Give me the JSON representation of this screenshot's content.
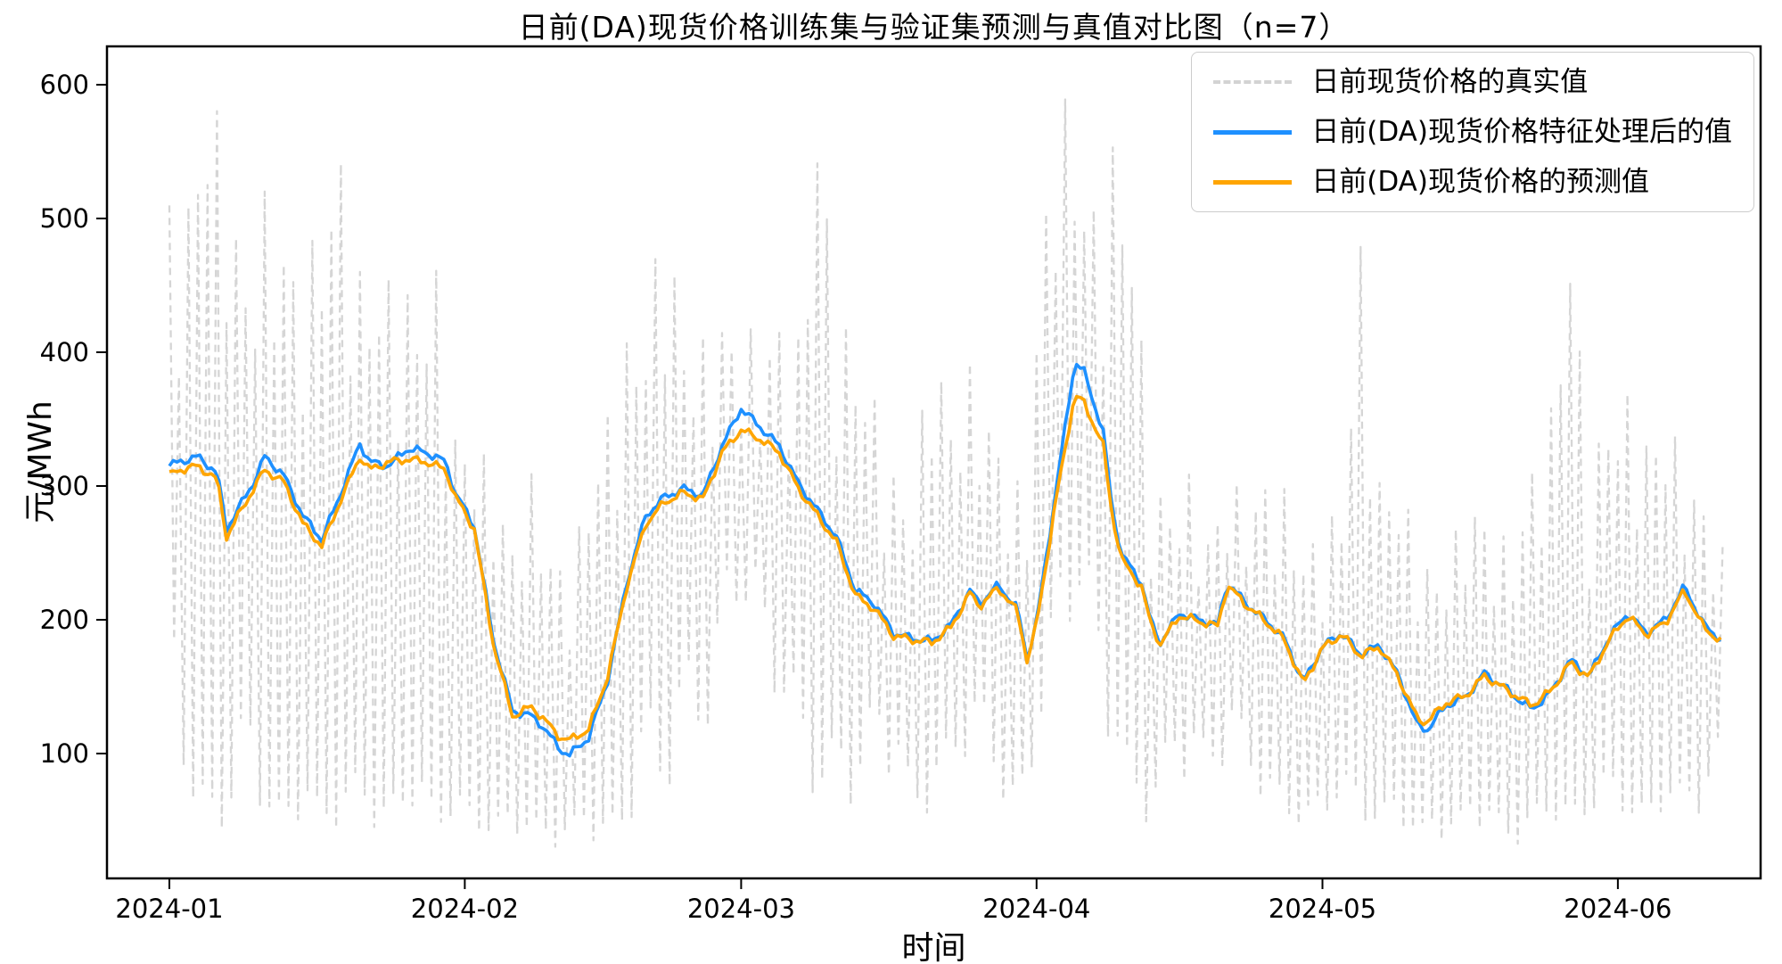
{
  "title": "日前(DA)现货价格训练集与验证集预测与真值对比图（n=7）",
  "xlabel": "时间",
  "ylabel": "元/MWh",
  "colors": {
    "actual": "#d3d3d3",
    "processed": "#1e90ff",
    "predicted": "#ffa500"
  },
  "legend": {
    "items": [
      {
        "label": "日前现货价格的真实值",
        "style": "dashed",
        "color": "#d3d3d3"
      },
      {
        "label": "日前(DA)现货价格特征处理后的值",
        "style": "solid",
        "color": "#1e90ff"
      },
      {
        "label": "日前(DA)现货价格的预测值",
        "style": "solid",
        "color": "#ffa500"
      }
    ]
  },
  "chart_data": {
    "type": "line",
    "title": "日前(DA)现货价格训练集与验证集预测与真值对比图（n=7）",
    "xlabel": "时间",
    "ylabel": "元/MWh",
    "grid": false,
    "legend_position": "upper right",
    "x_axis": {
      "ticks": [
        {
          "label": "2024-01",
          "day": 0
        },
        {
          "label": "2024-02",
          "day": 31
        },
        {
          "label": "2024-03",
          "day": 60
        },
        {
          "label": "2024-04",
          "day": 91
        },
        {
          "label": "2024-05",
          "day": 121
        },
        {
          "label": "2024-06",
          "day": 152
        }
      ]
    },
    "y_axis": {
      "ticks": [
        100,
        200,
        300,
        400,
        500,
        600
      ],
      "lim": [
        7,
        629
      ]
    },
    "dates": [
      "01-01",
      "01-02",
      "01-04",
      "01-06",
      "01-07",
      "01-08",
      "01-10",
      "01-11",
      "01-13",
      "01-15",
      "01-17",
      "01-19",
      "01-21",
      "01-22",
      "01-24",
      "01-26",
      "01-28",
      "01-30",
      "01-31",
      "02-02",
      "02-04",
      "02-06",
      "02-08",
      "02-09",
      "02-11",
      "02-12",
      "02-14",
      "02-16",
      "02-18",
      "02-20",
      "02-22",
      "02-24",
      "02-26",
      "02-28",
      "03-01",
      "03-03",
      "03-05",
      "03-07",
      "03-09",
      "03-11",
      "03-13",
      "03-15",
      "03-17",
      "03-19",
      "03-21",
      "03-23",
      "03-25",
      "03-26",
      "03-28",
      "03-30",
      "03-31",
      "04-01",
      "04-03",
      "04-05",
      "04-06",
      "04-08",
      "04-09",
      "04-10",
      "04-12",
      "04-13",
      "04-14",
      "04-16",
      "04-18",
      "04-20",
      "04-21",
      "04-23",
      "04-25",
      "04-27",
      "04-29",
      "05-01",
      "05-03",
      "05-05",
      "05-07",
      "05-09",
      "05-11",
      "05-12",
      "05-14",
      "05-16",
      "05-18",
      "05-20",
      "05-22",
      "05-23",
      "05-25",
      "05-27",
      "05-29",
      "05-31",
      "06-02",
      "06-04",
      "06-06",
      "06-08",
      "06-10",
      "06-12"
    ],
    "series": [
      {
        "name": "日前现货价格的真实值",
        "kind": "noisy-dashed",
        "color": "#d3d3d3",
        "envelope": {
          "dates": [
            "01-01",
            "01-03",
            "01-05",
            "01-07",
            "01-09",
            "01-11",
            "01-13",
            "01-15",
            "01-17",
            "01-19",
            "01-21",
            "01-23",
            "01-25",
            "01-27",
            "01-29",
            "01-31",
            "02-02",
            "02-04",
            "02-06",
            "02-08",
            "02-10",
            "02-12",
            "02-14",
            "02-16",
            "02-18",
            "02-20",
            "02-22",
            "02-24",
            "02-26",
            "02-28",
            "03-01",
            "03-03",
            "03-05",
            "03-07",
            "03-09",
            "03-11",
            "03-13",
            "03-15",
            "03-17",
            "03-19",
            "03-21",
            "03-23",
            "03-25",
            "03-27",
            "03-29",
            "03-31",
            "04-01",
            "04-03",
            "04-05",
            "04-07",
            "04-09",
            "04-11",
            "04-13",
            "04-15",
            "04-17",
            "04-19",
            "04-21",
            "04-23",
            "04-25",
            "04-27",
            "04-29",
            "05-01",
            "05-03",
            "05-05",
            "05-07",
            "05-09",
            "05-11",
            "05-13",
            "05-15",
            "05-17",
            "05-19",
            "05-21",
            "05-23",
            "05-25",
            "05-27",
            "05-29",
            "05-31",
            "06-02",
            "06-04",
            "06-06",
            "06-08",
            "06-10",
            "06-12"
          ],
          "low": [
            150,
            60,
            50,
            40,
            100,
            50,
            40,
            60,
            40,
            50,
            60,
            40,
            50,
            60,
            40,
            50,
            40,
            35,
            40,
            35,
            30,
            35,
            40,
            35,
            40,
            100,
            60,
            120,
            100,
            150,
            200,
            150,
            130,
            100,
            60,
            80,
            60,
            100,
            90,
            50,
            60,
            80,
            100,
            90,
            50,
            60,
            100,
            150,
            200,
            150,
            100,
            60,
            50,
            80,
            90,
            70,
            100,
            80,
            60,
            50,
            40,
            50,
            60,
            50,
            40,
            50,
            30,
            40,
            35,
            50,
            40,
            30,
            40,
            50,
            40,
            50,
            60,
            50,
            40,
            60,
            50,
            60,
            80
          ],
          "high": [
            500,
            505,
            600,
            530,
            450,
            505,
            480,
            440,
            500,
            540,
            450,
            450,
            445,
            430,
            450,
            335,
            330,
            300,
            255,
            300,
            250,
            225,
            300,
            350,
            400,
            420,
            500,
            410,
            400,
            420,
            410,
            400,
            420,
            400,
            575,
            420,
            400,
            360,
            305,
            285,
            410,
            350,
            380,
            350,
            305,
            285,
            420,
            590,
            560,
            500,
            545,
            500,
            300,
            285,
            300,
            260,
            300,
            285,
            300,
            290,
            250,
            260,
            285,
            470,
            300,
            300,
            250,
            230,
            260,
            285,
            260,
            250,
            310,
            350,
            490,
            300,
            355,
            360,
            330,
            350,
            305,
            285,
            250
          ]
        }
      },
      {
        "name": "日前(DA)现货价格特征处理后的值",
        "kind": "line",
        "color": "#1e90ff",
        "values": [
          315,
          318,
          322,
          310,
          268,
          280,
          305,
          322,
          308,
          278,
          260,
          295,
          332,
          318,
          315,
          328,
          325,
          318,
          295,
          270,
          185,
          132,
          128,
          122,
          103,
          99,
          112,
          155,
          228,
          278,
          292,
          298,
          293,
          330,
          358,
          344,
          330,
          302,
          282,
          262,
          222,
          212,
          190,
          186,
          184,
          196,
          222,
          212,
          226,
          208,
          172,
          198,
          295,
          393,
          385,
          340,
          280,
          248,
          228,
          198,
          183,
          205,
          200,
          196,
          228,
          212,
          200,
          186,
          153,
          180,
          190,
          174,
          181,
          158,
          120,
          118,
          136,
          142,
          160,
          150,
          138,
          133,
          146,
          170,
          158,
          186,
          205,
          190,
          200,
          225,
          196,
          184
        ]
      },
      {
        "name": "日前(DA)现货价格的预测值",
        "kind": "line",
        "color": "#ffa500",
        "values": [
          308,
          312,
          315,
          305,
          262,
          275,
          300,
          312,
          303,
          272,
          255,
          290,
          322,
          312,
          318,
          320,
          318,
          312,
          292,
          268,
          182,
          128,
          135,
          128,
          112,
          110,
          118,
          158,
          225,
          272,
          288,
          295,
          290,
          325,
          342,
          335,
          325,
          298,
          278,
          258,
          218,
          208,
          188,
          185,
          183,
          194,
          220,
          210,
          224,
          206,
          170,
          196,
          288,
          368,
          362,
          330,
          275,
          244,
          225,
          196,
          182,
          203,
          199,
          195,
          226,
          211,
          199,
          185,
          152,
          179,
          189,
          173,
          180,
          157,
          125,
          124,
          138,
          143,
          158,
          149,
          140,
          136,
          147,
          168,
          157,
          184,
          203,
          189,
          198,
          222,
          194,
          183
        ]
      }
    ]
  }
}
